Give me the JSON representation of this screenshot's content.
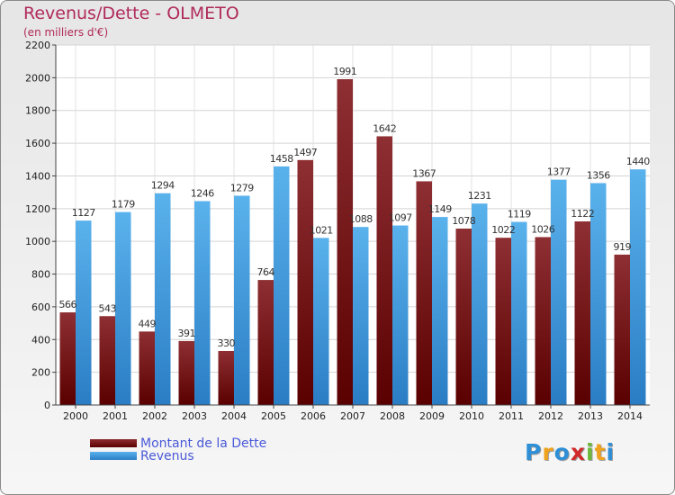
{
  "title": "Revenus/Dette - OLMETO",
  "subtitle": "(en milliers d'€)",
  "chart_data": {
    "type": "bar",
    "categories": [
      "2000",
      "2001",
      "2002",
      "2003",
      "2004",
      "2005",
      "2006",
      "2007",
      "2008",
      "2009",
      "2010",
      "2011",
      "2012",
      "2013",
      "2014"
    ],
    "series": [
      {
        "name": "Montant de la Dette",
        "color": "#7a1a1a",
        "values": [
          566,
          543,
          449,
          391,
          330,
          764,
          1497,
          1991,
          1642,
          1367,
          1078,
          1022,
          1026,
          1122,
          919
        ],
        "labels": [
          "566",
          "543",
          "449",
          "391",
          "330",
          "764",
          "1497",
          "1991",
          "1642",
          "1367",
          "1078",
          "1022",
          "1026",
          "1122",
          "919"
        ]
      },
      {
        "name": "Revenus",
        "color": "#3a9ae0",
        "values": [
          1127,
          1179,
          1294,
          1246,
          1279,
          1458,
          1021,
          1088,
          1097,
          1149,
          1231,
          1119,
          1377,
          1356,
          1440
        ],
        "labels": [
          "1127",
          "1179",
          "1294",
          "1246",
          "1279",
          "1458",
          "1021",
          "1088",
          "1097",
          "1149",
          "1231",
          "1119",
          "1377",
          "1356",
          "1440"
        ]
      }
    ],
    "yticks": [
      0,
      200,
      400,
      600,
      800,
      1000,
      1200,
      1400,
      1600,
      1800,
      2000,
      2200
    ],
    "ylim": [
      0,
      2200
    ],
    "grid": true,
    "legend": "bottom-left"
  },
  "legend": {
    "debt_label": "Montant de la Dette",
    "revenue_label": "Revenus",
    "debt_color": "#6a0f14",
    "revenue_color": "#3a9ae0"
  },
  "logo": {
    "letters": [
      "P",
      "r",
      "o",
      "x",
      "i",
      "t",
      "i"
    ],
    "colors": [
      "#2f8fd6",
      "#f0a21e",
      "#2f8fd6",
      "#d02a2a",
      "#6cb83a",
      "#f0a21e",
      "#2f8fd6"
    ]
  }
}
